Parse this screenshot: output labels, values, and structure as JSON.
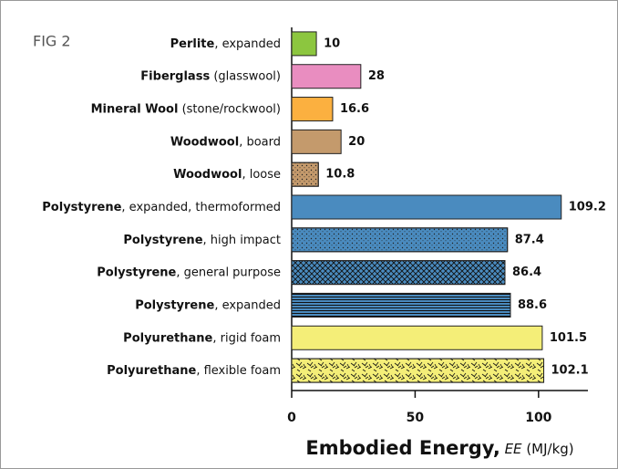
{
  "chart_data": {
    "type": "hbar",
    "annotation": "FIG 2",
    "x_label": "Embodied Energy, EE (MJ/kg)",
    "categories": [
      "Perlite, expanded",
      "Fiberglass (glasswool)",
      "Mineral Wool (stone/rockwool)",
      "Woodwool, board",
      "Woodwool, loose",
      "Polystyrene, expanded, thermoformed",
      "Polystyrene, high impact",
      "Polystyrene, general purpose",
      "Polystyrene, expanded",
      "Polyurethane, rigid foam",
      "Polyurethane, flexible foam"
    ],
    "values": [
      10,
      28,
      16.6,
      20,
      10.8,
      109.2,
      87.4,
      86.4,
      88.6,
      101.5,
      102.1
    ],
    "colors": [
      "#8cc63f",
      "#e98dc0",
      "#fbb040",
      "#c49a6c",
      "#c49a6c",
      "#4a8bbf",
      "#4a8bbf",
      "#4a8bbf",
      "#4a8bbf",
      "#f4ee78",
      "#f4ee78"
    ],
    "patterns": [
      "solid",
      "solid",
      "solid",
      "solid",
      "dots",
      "solid",
      "dots",
      "crosshatch",
      "hlines",
      "solid",
      "dashes"
    ],
    "xlim": [
      0,
      120
    ],
    "xticks": [
      0,
      50,
      100
    ]
  }
}
